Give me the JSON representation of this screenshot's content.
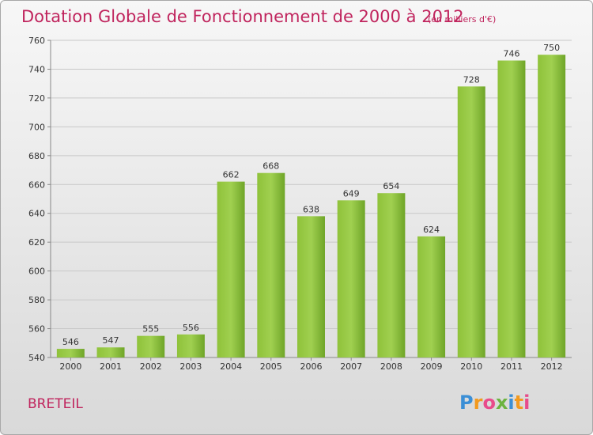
{
  "chart_data": {
    "type": "bar",
    "title": "Dotation Globale de Fonctionnement de 2000 à 2012",
    "subtitle": "(en milliers d'€)",
    "categories": [
      "2000",
      "2001",
      "2002",
      "2003",
      "2004",
      "2005",
      "2006",
      "2007",
      "2008",
      "2009",
      "2010",
      "2011",
      "2012"
    ],
    "values": [
      546,
      547,
      555,
      556,
      662,
      668,
      638,
      649,
      654,
      624,
      728,
      746,
      750
    ],
    "ylim": [
      540,
      760
    ],
    "yticks": [
      540,
      560,
      580,
      600,
      620,
      640,
      660,
      680,
      700,
      720,
      740,
      760
    ],
    "grid": true,
    "bar_color": "#7cb52e",
    "bar_color_light": "#9ccc4a"
  },
  "commune": "BRETEIL",
  "brand": {
    "letters": [
      "P",
      "r",
      "o",
      "x",
      "i",
      "t",
      "i"
    ],
    "colors": [
      "#3b8fd6",
      "#f29a1f",
      "#e84c8b",
      "#6cb33f",
      "#3b8fd6",
      "#f29a1f",
      "#e84c8b"
    ]
  }
}
